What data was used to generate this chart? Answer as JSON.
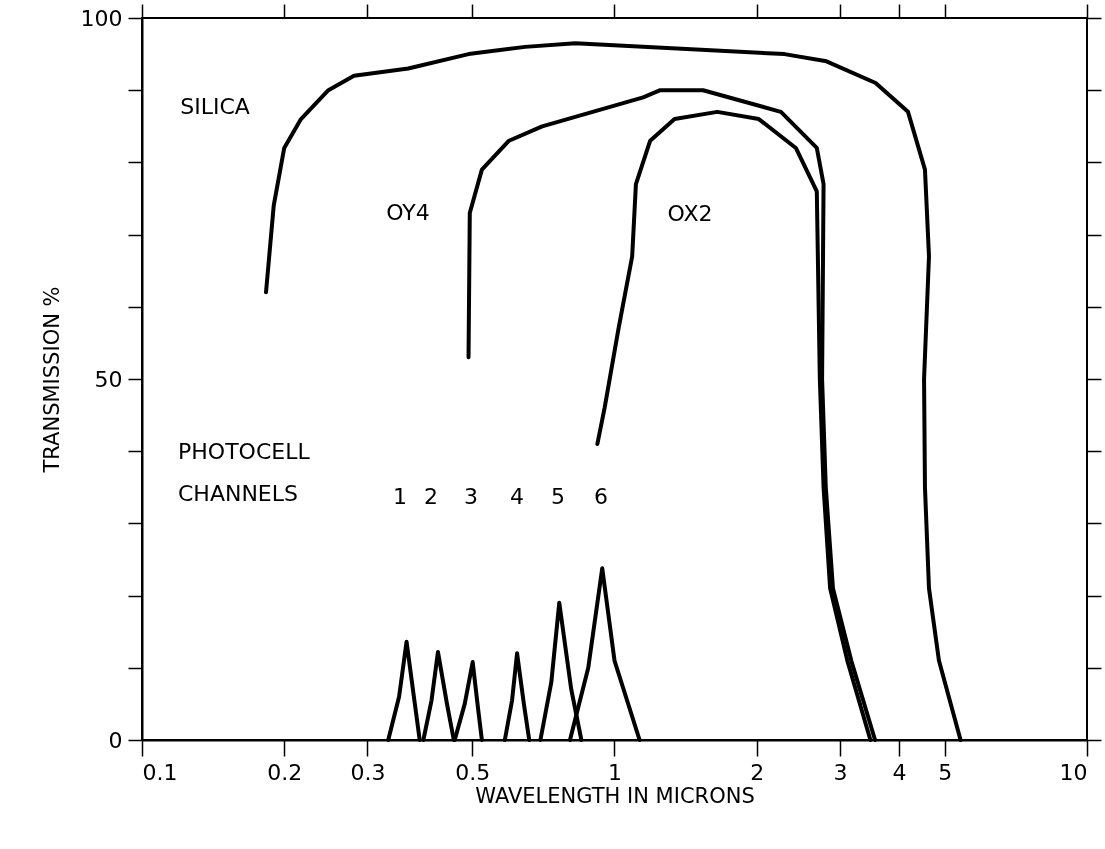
{
  "chart_data": {
    "type": "line",
    "xlabel": "WAVELENGTH IN MICRONS",
    "ylabel": "TRANSMISSION %",
    "log": "x",
    "grid": false,
    "marker": "none",
    "line_style": "solid",
    "xlim": [
      0.1,
      10
    ],
    "ylim": [
      0,
      100
    ],
    "xticks": [
      {
        "value": 0.1,
        "label": "0.1"
      },
      0.2,
      0.3,
      0.5,
      1,
      2,
      3,
      4,
      5,
      10
    ],
    "yticks": [
      0,
      {
        "value": 10,
        "label": null
      },
      {
        "value": 20,
        "label": null
      },
      {
        "value": 30,
        "label": null
      },
      {
        "value": 40,
        "label": null
      },
      50,
      {
        "value": 60,
        "label": null
      },
      {
        "value": 70,
        "label": null
      },
      {
        "value": 80,
        "label": null
      },
      {
        "value": 90,
        "label": null
      },
      100
    ],
    "series": [
      {
        "color": "#000000",
        "x": [
          0.183,
          0.19,
          0.2,
          0.217,
          0.248,
          0.281,
          0.366,
          0.491,
          0.647,
          0.826,
          2.29,
          2.81,
          3.57,
          4.18,
          4.54,
          4.63,
          4.52,
          4.54,
          4.63,
          4.86,
          5.4
        ],
        "values": [
          62,
          74,
          82,
          86,
          90,
          92,
          93,
          95,
          96,
          96.5,
          95,
          94,
          91,
          87,
          79,
          67,
          50,
          35,
          21,
          11,
          0
        ]
      },
      {
        "color": "#000000",
        "x": [
          0.491,
          0.494,
          0.524,
          0.598,
          0.703,
          1.15,
          1.25,
          1.54,
          2.25,
          2.68,
          2.77,
          2.75,
          2.8,
          2.9,
          3.17,
          3.56
        ],
        "values": [
          53,
          73,
          79,
          83,
          85,
          89,
          90,
          90,
          87,
          82,
          77,
          50,
          35,
          21,
          11,
          0
        ]
      },
      {
        "color": "#000000",
        "x": [
          0.92,
          0.953,
          1.02,
          1.09,
          1.11,
          1.19,
          1.34,
          1.65,
          2.02,
          2.42,
          2.68,
          2.72,
          2.77,
          2.86,
          3.11,
          3.48
        ],
        "values": [
          41,
          46,
          57,
          67,
          77,
          83,
          86,
          87,
          86,
          82,
          76,
          50,
          35,
          21,
          11,
          0
        ]
      },
      {
        "color": "#000000",
        "x": [
          0.332,
          0.35,
          0.363,
          0.378,
          0.387
        ],
        "values": [
          0,
          6,
          13.6,
          5,
          0
        ]
      },
      {
        "color": "#000000",
        "x": [
          0.394,
          0.41,
          0.423,
          0.442,
          0.457
        ],
        "values": [
          0,
          5.5,
          12.2,
          5,
          0
        ]
      },
      {
        "color": "#000000",
        "x": [
          0.459,
          0.482,
          0.501,
          0.514,
          0.524
        ],
        "values": [
          0,
          5,
          10.8,
          4.5,
          0
        ]
      },
      {
        "color": "#000000",
        "x": [
          0.586,
          0.607,
          0.622,
          0.643,
          0.66
        ],
        "values": [
          0,
          5.5,
          12,
          5,
          0
        ]
      },
      {
        "color": "#000000",
        "x": [
          0.697,
          0.735,
          0.764,
          0.81,
          0.851
        ],
        "values": [
          0,
          8,
          19,
          7,
          0
        ]
      },
      {
        "color": "#000000",
        "x": [
          0.805,
          0.88,
          0.942,
          1.0,
          1.13
        ],
        "values": [
          0,
          10,
          23.8,
          11,
          0
        ]
      }
    ],
    "annotations": [
      "SILICA",
      "OY4",
      "OX2",
      "PHOTOCELL CHANNELS",
      "1",
      "2",
      "3",
      "4",
      "5",
      "6"
    ]
  }
}
